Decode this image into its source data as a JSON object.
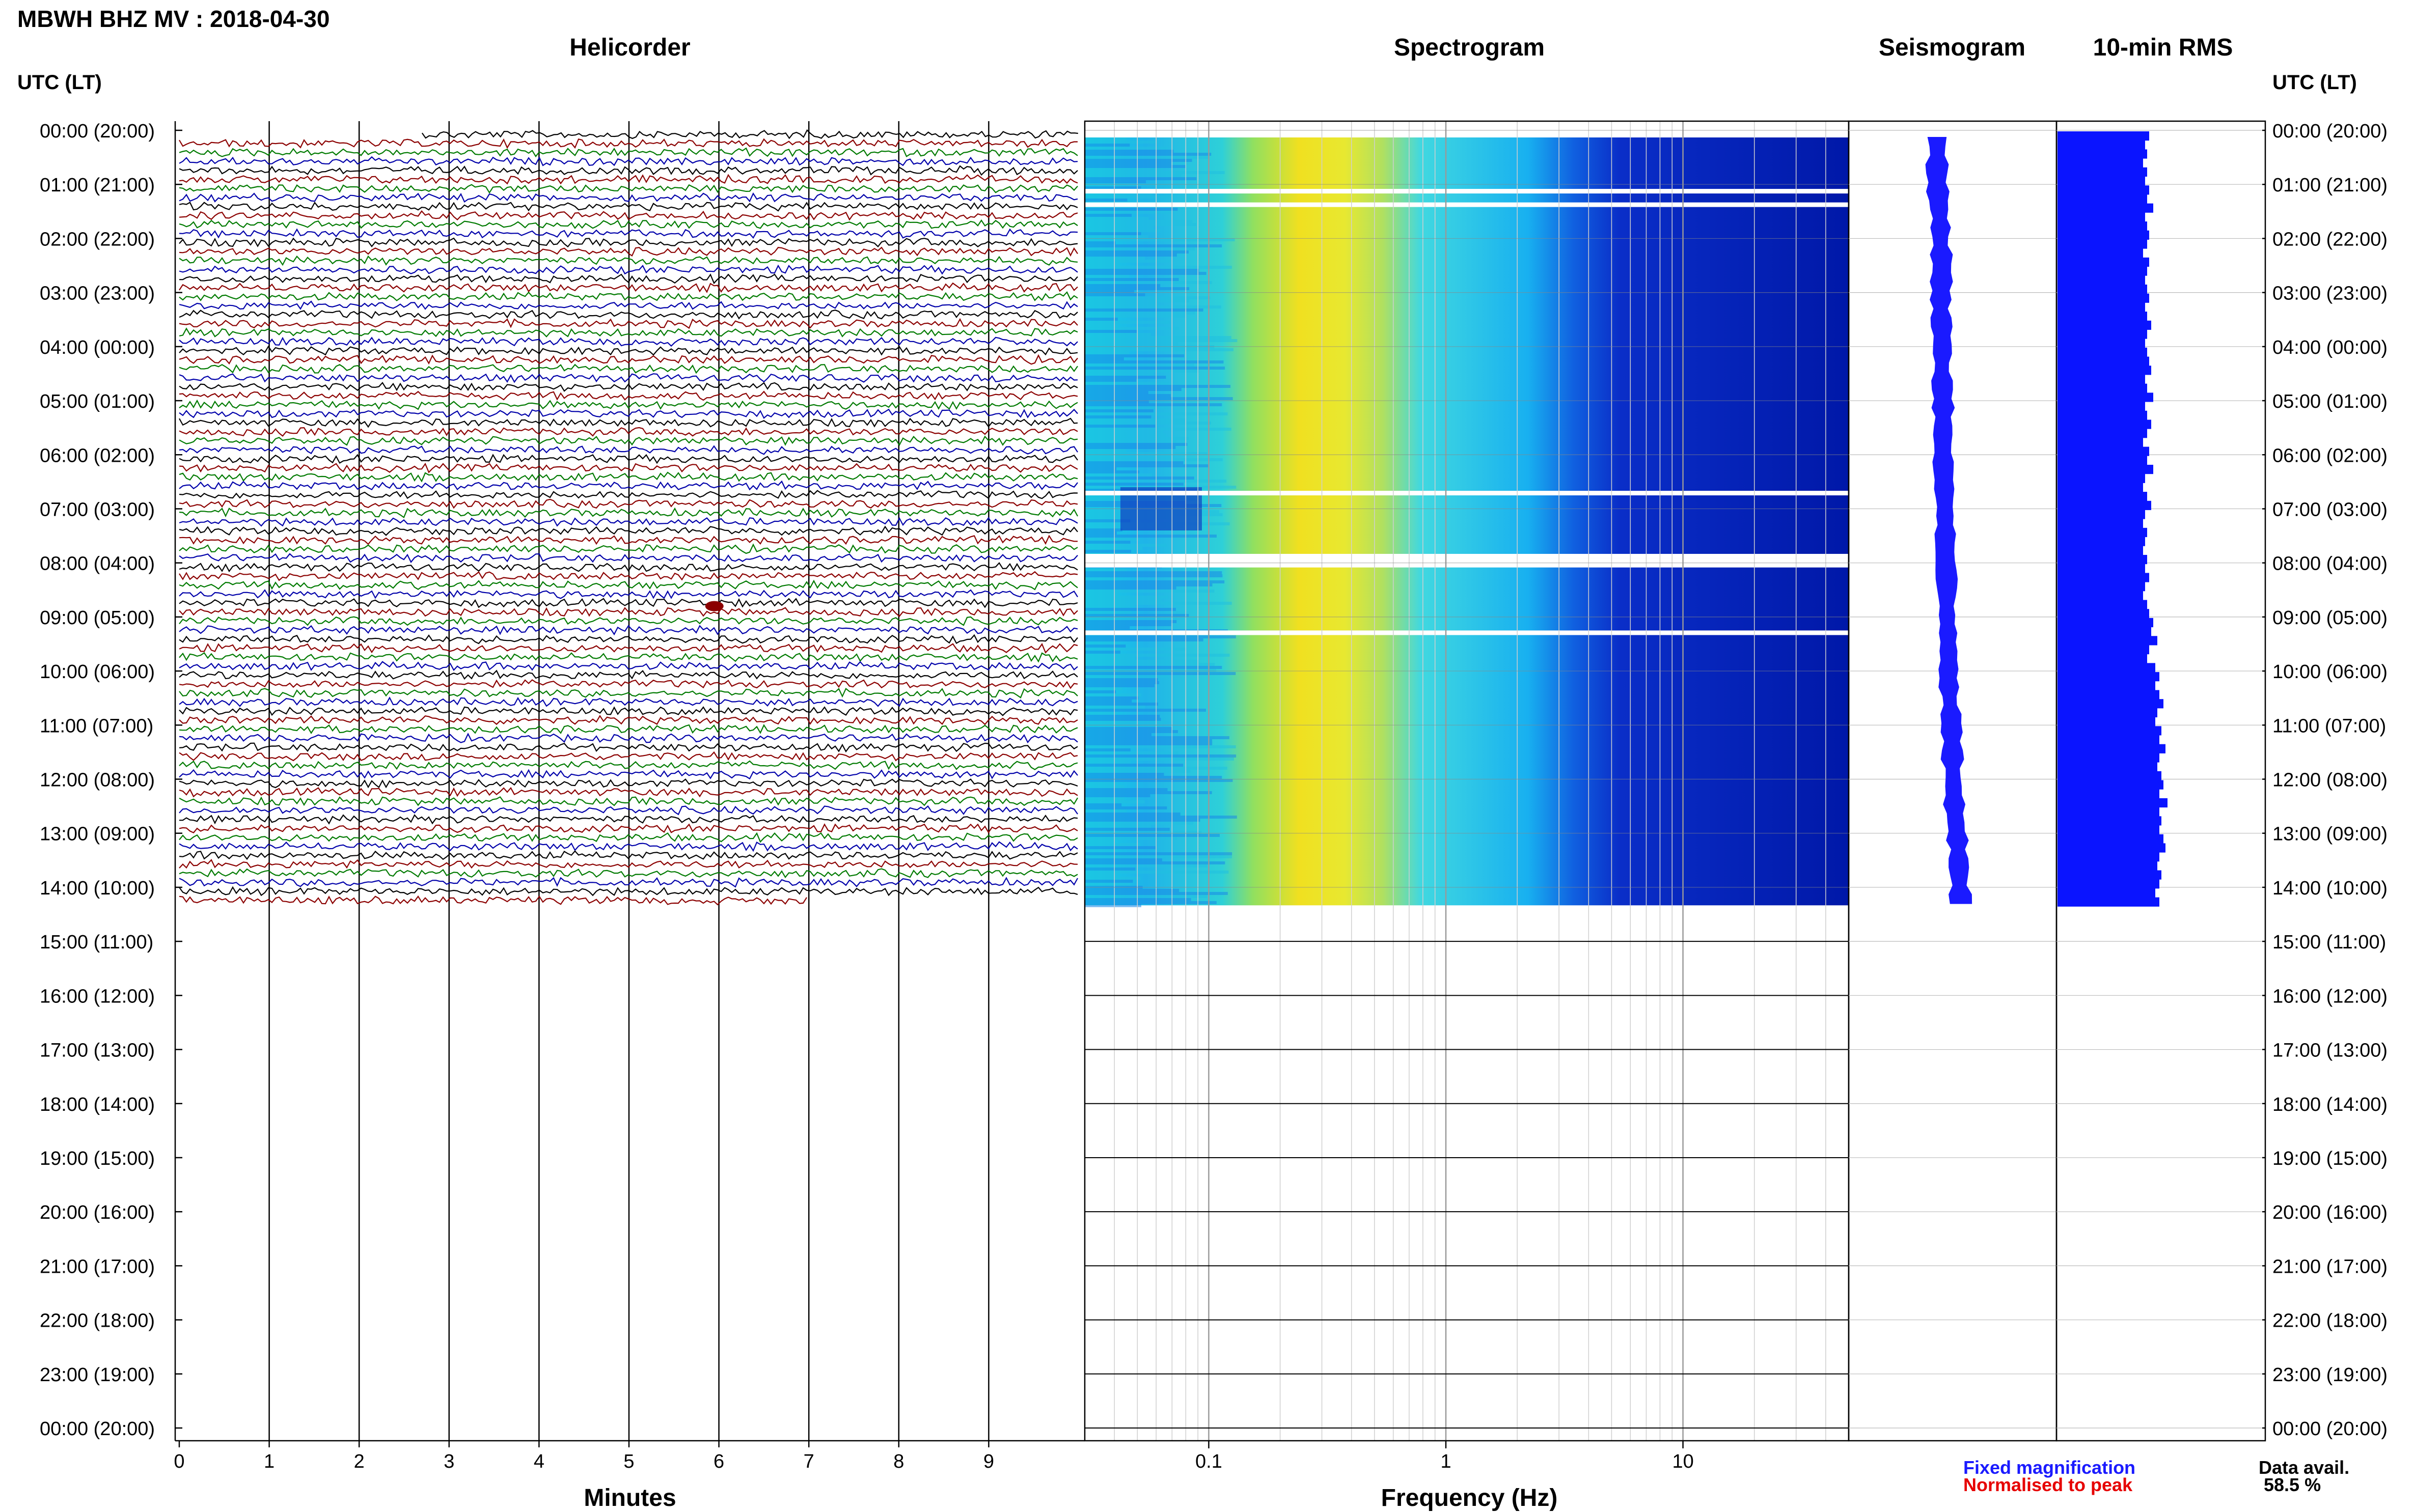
{
  "header": {
    "title": "MBWH BHZ MV : 2018-04-30"
  },
  "panels": {
    "helicorder": "Helicorder",
    "spectrogram": "Spectrogram",
    "seismogram": "Seismogram",
    "rms": "10-min RMS"
  },
  "axes": {
    "utc_left_head": "UTC (LT)",
    "utc_right_head": "UTC (LT)",
    "minutes_title": "Minutes",
    "frequency_title": "Frequency (Hz)"
  },
  "legend": {
    "fixed": "Fixed magnification",
    "normalised": "Normalised to peak"
  },
  "availability": {
    "label": "Data avail.",
    "value": "58.5 %"
  },
  "colors": {
    "helicorder_traces": [
      "#000000",
      "#8b0000",
      "#007a00",
      "#0000aa"
    ],
    "seismogram": "#1a1aff",
    "rms": "#0a14ff",
    "grid": "#000000",
    "spectrogram_low": "#0018a8",
    "spectrogram_mid": "#10c8e8",
    "spectrogram_high": "#f0e020"
  },
  "chart_data": [
    {
      "type": "line",
      "name_panel": "Helicorder",
      "xlabel": "Minutes",
      "x_ticks": [
        0,
        1,
        2,
        3,
        4,
        5,
        6,
        7,
        8,
        9
      ],
      "xlim": [
        0,
        10
      ],
      "y_ticks": [
        "00:00 (20:00)",
        "01:00 (21:00)",
        "02:00 (22:00)",
        "03:00 (23:00)",
        "04:00 (00:00)",
        "05:00 (01:00)",
        "06:00 (02:00)",
        "07:00 (03:00)",
        "08:00 (04:00)",
        "09:00 (05:00)",
        "10:00 (06:00)",
        "11:00 (07:00)",
        "12:00 (08:00)",
        "13:00 (09:00)",
        "14:00 (10:00)",
        "15:00 (11:00)",
        "16:00 (12:00)",
        "17:00 (13:00)",
        "18:00 (14:00)",
        "19:00 (15:00)",
        "20:00 (16:00)",
        "21:00 (17:00)",
        "22:00 (18:00)",
        "23:00 (19:00)",
        "00:00 (20:00)"
      ],
      "trace_interval_minutes": 10,
      "data_end_utc": "14:20"
    },
    {
      "type": "heatmap",
      "name_panel": "Spectrogram",
      "xlabel": "Frequency (Hz)",
      "x_scale": "log",
      "x_ticks": [
        0.1,
        1,
        10
      ],
      "xlim": [
        0.03,
        50
      ],
      "bands": [
        {
          "f_from": 0.03,
          "f_to": 0.2,
          "level": "medium"
        },
        {
          "f_from": 0.2,
          "f_to": 0.6,
          "level": "high"
        },
        {
          "f_from": 0.6,
          "f_to": 3,
          "level": "medium"
        },
        {
          "f_from": 3,
          "f_to": 50,
          "level": "low"
        }
      ],
      "gaps_utc": [
        "01:05",
        "01:20",
        "06:40",
        "07:50",
        "07:55",
        "08:00",
        "09:15"
      ],
      "data_end_utc": "14:20"
    },
    {
      "type": "line",
      "name_panel": "Seismogram",
      "center_offset": [
        0.05,
        0.06,
        0.06,
        0.05,
        0.04,
        0.05,
        0.07,
        0.09,
        0.11,
        0.13,
        0.15,
        0.14,
        0.15,
        0.17,
        0.19,
        0.18,
        0.17,
        0.16,
        0.15,
        0.15,
        0.16,
        0.18,
        0.19,
        0.2,
        0.2,
        0.19,
        0.18,
        0.19,
        0.2,
        0.21,
        0.22,
        0.22,
        0.22,
        0.21,
        0.21,
        0.21,
        0.22,
        0.23,
        0.24,
        0.25,
        0.26,
        0.27,
        0.27,
        0.28,
        0.28,
        0.27,
        0.27,
        0.28,
        0.3,
        0.32,
        0.33,
        0.33,
        0.32,
        0.33,
        0.34,
        0.36,
        0.36,
        0.37,
        0.38,
        0.37,
        0.36,
        0.38,
        0.4,
        0.42,
        0.44,
        0.45,
        0.46,
        0.47,
        0.48,
        0.48,
        0.49,
        0.5,
        0.51,
        0.52,
        0.53,
        0.55,
        0.58,
        0.6,
        0.62,
        0.64,
        0.65,
        0.66,
        0.67,
        0.68,
        0.7,
        0.72
      ],
      "data_end_utc": "14:20"
    },
    {
      "type": "bar",
      "name_panel": "10-min RMS",
      "orientation": "horizontal",
      "bin_minutes": 10,
      "values": [
        0.45,
        0.43,
        0.44,
        0.42,
        0.44,
        0.43,
        0.45,
        0.44,
        0.47,
        0.43,
        0.44,
        0.45,
        0.44,
        0.42,
        0.45,
        0.44,
        0.43,
        0.44,
        0.45,
        0.43,
        0.44,
        0.46,
        0.44,
        0.43,
        0.44,
        0.45,
        0.46,
        0.43,
        0.44,
        0.47,
        0.43,
        0.44,
        0.46,
        0.44,
        0.42,
        0.45,
        0.44,
        0.47,
        0.43,
        0.42,
        0.44,
        0.46,
        0.43,
        0.42,
        0.44,
        0.43,
        0.42,
        0.44,
        0.43,
        0.45,
        0.43,
        0.42,
        0.44,
        0.45,
        0.47,
        0.46,
        0.49,
        0.45,
        0.44,
        0.48,
        0.5,
        0.48,
        0.5,
        0.52,
        0.49,
        0.48,
        0.51,
        0.5,
        0.53,
        0.5,
        0.49,
        0.51,
        0.52,
        0.5,
        0.54,
        0.5,
        0.51,
        0.5,
        0.52,
        0.53,
        0.5,
        0.49,
        0.51,
        0.5,
        0.48,
        0.5
      ],
      "data_end_utc": "14:20"
    }
  ]
}
